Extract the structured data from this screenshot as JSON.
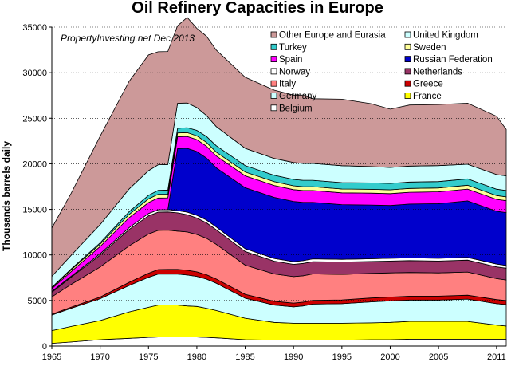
{
  "chart_data": {
    "type": "area",
    "title": "Oil Refinery Capacities in Europe",
    "xlabel": "",
    "ylabel": "Thousands barrels daily",
    "annotation": "PropertyInvesting.net  Dec 2013",
    "xlim": [
      1965,
      2012
    ],
    "ylim": [
      0,
      35000
    ],
    "x_ticks": [
      "1965",
      "1970",
      "1975",
      "1980",
      "1985",
      "1990",
      "1995",
      "2000",
      "2005",
      "2011"
    ],
    "y_ticks": [
      "0",
      "5000",
      "10000",
      "15000",
      "20000",
      "25000",
      "30000",
      "35000"
    ],
    "grid": "horizontal",
    "legend_position": "top-right",
    "x": [
      1965,
      1967,
      1970,
      1973,
      1975,
      1976,
      1977,
      1978,
      1979,
      1980,
      1981,
      1982,
      1985,
      1988,
      1990,
      1991,
      1992,
      1995,
      1998,
      2000,
      2002,
      2005,
      2008,
      2011,
      2012
    ],
    "series": [
      {
        "name": "Belgium",
        "color": "#ffffff",
        "values": [
          300,
          450,
          700,
          850,
          950,
          1000,
          1000,
          1000,
          1000,
          1000,
          950,
          900,
          700,
          650,
          650,
          650,
          650,
          650,
          700,
          700,
          750,
          750,
          750,
          750,
          750
        ]
      },
      {
        "name": "France",
        "color": "#ffff00",
        "values": [
          1400,
          1700,
          2100,
          2900,
          3300,
          3500,
          3500,
          3500,
          3400,
          3350,
          3200,
          3000,
          2350,
          1950,
          1850,
          1850,
          1850,
          1850,
          1850,
          1900,
          1950,
          1950,
          1950,
          1550,
          1450
        ]
      },
      {
        "name": "Germany",
        "color": "#ccffff",
        "values": [
          1700,
          2000,
          2400,
          2900,
          3300,
          3400,
          3400,
          3400,
          3400,
          3300,
          3200,
          3000,
          2200,
          1900,
          1800,
          1900,
          2100,
          2150,
          2300,
          2350,
          2350,
          2350,
          2450,
          2350,
          2350
        ]
      },
      {
        "name": "Greece",
        "color": "#cc0000",
        "values": [
          100,
          120,
          180,
          350,
          450,
          500,
          520,
          520,
          520,
          500,
          480,
          470,
          430,
          420,
          420,
          420,
          420,
          420,
          430,
          430,
          430,
          430,
          430,
          450,
          450
        ]
      },
      {
        "name": "Italy",
        "color": "#ff8080",
        "values": [
          1900,
          2500,
          3300,
          4000,
          4300,
          4300,
          4300,
          4200,
          4200,
          4100,
          4000,
          3800,
          3200,
          3000,
          2900,
          2900,
          2900,
          2800,
          2700,
          2650,
          2600,
          2550,
          2550,
          2300,
          2250
        ]
      },
      {
        "name": "Netherlands",
        "color": "#993366",
        "values": [
          500,
          800,
          1300,
          1800,
          2000,
          2000,
          2000,
          2000,
          1900,
          1800,
          1700,
          1600,
          1500,
          1400,
          1350,
          1350,
          1350,
          1350,
          1300,
          1300,
          1300,
          1300,
          1300,
          1300,
          1300
        ]
      },
      {
        "name": "Norway",
        "color": "#ffffff",
        "values": [
          100,
          100,
          150,
          200,
          250,
          250,
          250,
          250,
          280,
          300,
          300,
          300,
          300,
          300,
          300,
          300,
          300,
          300,
          300,
          300,
          300,
          300,
          300,
          300,
          300
        ]
      },
      {
        "name": "Russian Federation",
        "color": "#0000cc",
        "values": [
          0,
          0,
          0,
          0,
          0,
          0,
          0,
          6800,
          7000,
          7000,
          6800,
          6500,
          6700,
          6700,
          6600,
          6400,
          6200,
          6000,
          5900,
          5800,
          5900,
          6000,
          6200,
          5800,
          5800
        ]
      },
      {
        "name": "Spain",
        "color": "#ff00ff",
        "values": [
          300,
          500,
          800,
          1100,
          1200,
          1300,
          1300,
          1300,
          1300,
          1300,
          1300,
          1300,
          1300,
          1300,
          1300,
          1300,
          1300,
          1300,
          1300,
          1300,
          1300,
          1300,
          1300,
          1300,
          1300
        ]
      },
      {
        "name": "Sweden",
        "color": "#ffff99",
        "values": [
          100,
          200,
          250,
          350,
          400,
          400,
          400,
          420,
          420,
          420,
          420,
          420,
          420,
          420,
          420,
          420,
          420,
          420,
          420,
          420,
          420,
          420,
          420,
          420,
          420
        ]
      },
      {
        "name": "Turkey",
        "color": "#33cccc",
        "values": [
          50,
          100,
          150,
          300,
          400,
          450,
          450,
          500,
          550,
          600,
          650,
          700,
          700,
          700,
          700,
          700,
          700,
          700,
          700,
          700,
          700,
          700,
          700,
          700,
          700
        ]
      },
      {
        "name": "United Kingdom",
        "color": "#ccffff",
        "values": [
          1200,
          1500,
          2000,
          2500,
          2700,
          2800,
          2800,
          2750,
          2700,
          2500,
          2300,
          2100,
          1900,
          1850,
          1850,
          1850,
          1850,
          1850,
          1800,
          1750,
          1750,
          1750,
          1600,
          1600,
          1600
        ]
      },
      {
        "name": "Other Europe and Eurasia",
        "color": "#cc9999",
        "values": [
          5300,
          6800,
          9700,
          11800,
          12700,
          12400,
          12400,
          8500,
          9400,
          8700,
          8700,
          8400,
          7800,
          7500,
          7400,
          7500,
          7100,
          7300,
          6900,
          6400,
          6700,
          6700,
          6700,
          6400,
          5100
        ]
      }
    ],
    "legend_columns": [
      [
        "Other Europe and Eurasia",
        "Turkey",
        "Spain",
        "Norway",
        "Italy",
        "Germany",
        "Belgium"
      ],
      [
        "United Kingdom",
        "Sweden",
        "Russian Federation",
        "Netherlands",
        "Greece",
        "France"
      ]
    ]
  }
}
